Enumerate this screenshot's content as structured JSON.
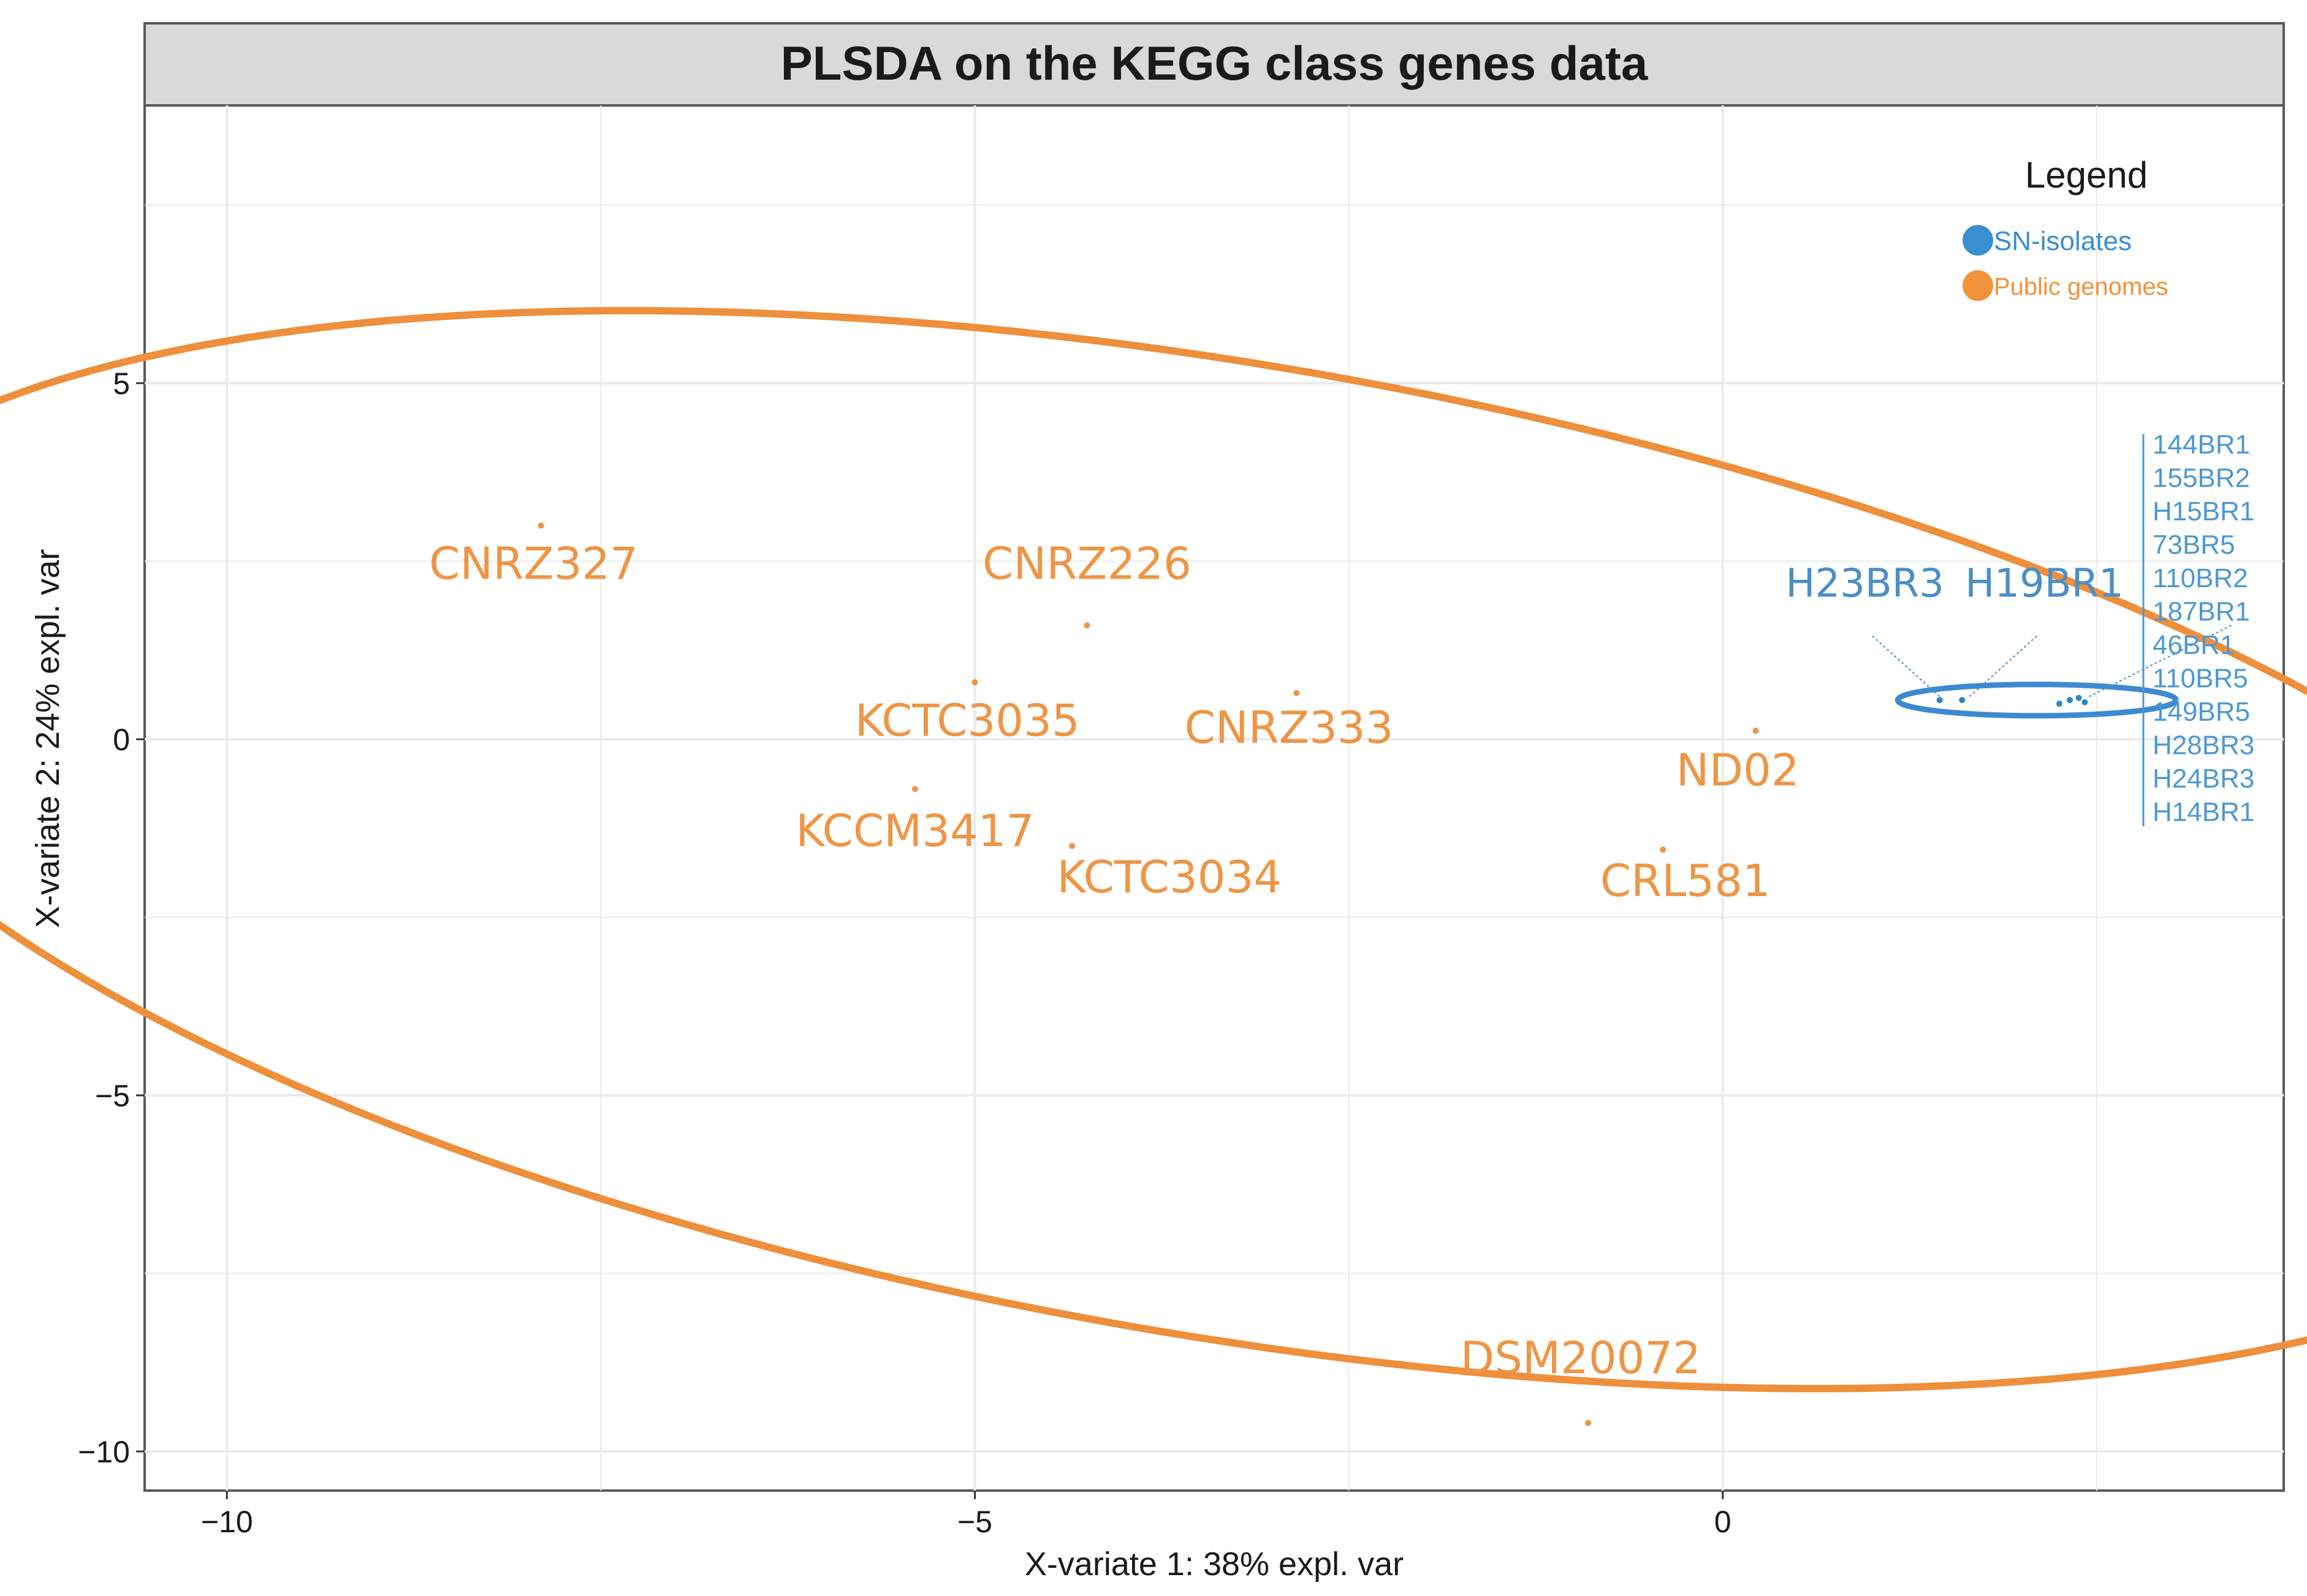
{
  "chart_data": {
    "type": "scatter",
    "title": "PLSDA on the KEGG class genes data",
    "xlabel": "X-variate 1: 38% expl. var",
    "ylabel": "X-variate 2: 24% expl. var",
    "xlim": [
      -10.55,
      3.75
    ],
    "ylim": [
      -10.55,
      8.9
    ],
    "grid": true,
    "x_ticks": [
      {
        "value": -10,
        "label": "−10"
      },
      {
        "value": -5,
        "label": "−5"
      },
      {
        "value": 0,
        "label": "0"
      }
    ],
    "y_ticks": [
      {
        "value": 5,
        "label": "5"
      },
      {
        "value": 0,
        "label": "0"
      },
      {
        "value": -5,
        "label": "−5"
      },
      {
        "value": -10,
        "label": "−10"
      }
    ],
    "legend": {
      "title": "Legend",
      "position": "top-right",
      "entries": [
        {
          "label": "SN-isolates",
          "color": "#3a8fd0"
        },
        {
          "label": "Public genomes",
          "color": "#f2923a"
        }
      ]
    },
    "colors": {
      "public": "#ee9545",
      "public_ellipse": "#ee8f3c",
      "sn": "#2e86c8",
      "sn_ellipse": "#3d8ad0",
      "sn_label": "#4a8fc8",
      "sn_list": "#4d98d2",
      "panel_border": "#5a5a5a",
      "header_bg": "#d9d9d9",
      "grid": "#ebebeb"
    },
    "ellipse": {
      "cx": -3.35,
      "cy": -1.55,
      "rx": 10.5,
      "ry": 6.35,
      "angle_deg": -29.5
    },
    "sn_ellipse": {
      "cx": 2.1,
      "cy": 0.55,
      "rx": 0.93,
      "ry": 0.22,
      "angle_deg": 0
    },
    "series": [
      {
        "name": "Public genomes",
        "points": [
          {
            "label": "CNRZ327",
            "x": -7.9,
            "y": 3.0,
            "lx": -7.95,
            "ly": 2.25
          },
          {
            "label": "CNRZ226",
            "x": -4.25,
            "y": 1.6,
            "lx": -4.25,
            "ly": 2.25
          },
          {
            "label": "KCTC3035",
            "x": -5.0,
            "y": 0.8,
            "lx": -5.05,
            "ly": 0.05
          },
          {
            "label": "CNRZ333",
            "x": -2.85,
            "y": 0.65,
            "lx": -2.9,
            "ly": -0.05
          },
          {
            "label": "KCCM3417",
            "x": -5.4,
            "y": -0.7,
            "lx": -5.4,
            "ly": -1.5
          },
          {
            "label": "KCTC3034",
            "x": -4.35,
            "y": -1.5,
            "lx": -3.7,
            "ly": -2.15
          },
          {
            "label": "ND02",
            "x": 0.22,
            "y": 0.12,
            "lx": 0.1,
            "ly": -0.65
          },
          {
            "label": "CRL581",
            "x": -0.4,
            "y": -1.55,
            "lx": -0.25,
            "ly": -2.2
          },
          {
            "label": "DSM20072",
            "x": -0.9,
            "y": -9.6,
            "lx": -0.95,
            "ly": -8.9
          }
        ]
      },
      {
        "name": "SN-isolates",
        "points": [
          {
            "label": "H23BR3",
            "x": 1.45,
            "y": 0.55,
            "lx": 0.95,
            "ly": 2.0
          },
          {
            "label": "H19BR1",
            "x": 1.6,
            "y": 0.55,
            "lx": 2.15,
            "ly": 2.0
          },
          {
            "label": "",
            "x": 2.25,
            "y": 0.5
          },
          {
            "label": "",
            "x": 2.32,
            "y": 0.55
          },
          {
            "label": "",
            "x": 2.38,
            "y": 0.58
          },
          {
            "label": "",
            "x": 2.42,
            "y": 0.52
          }
        ]
      }
    ],
    "sn_isolates_list": [
      "144BR1",
      "155BR2",
      "H15BR1",
      "73BR5",
      "110BR2",
      "187BR1",
      "46BR1",
      "110BR5",
      "149BR5",
      "H28BR3",
      "H24BR3",
      "H14BR1"
    ]
  }
}
